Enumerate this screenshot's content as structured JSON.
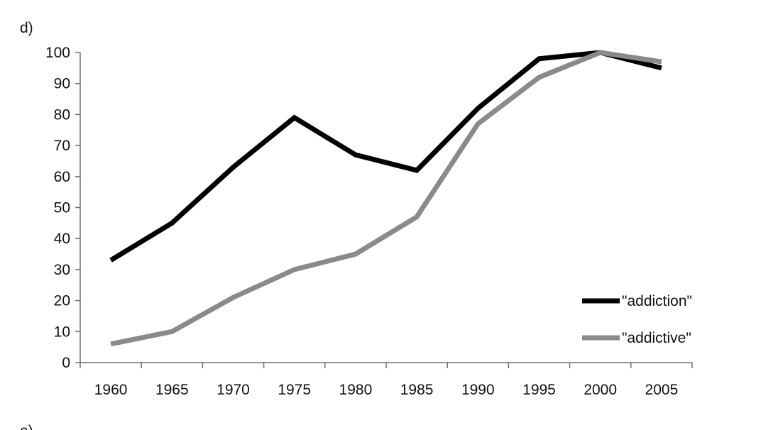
{
  "panel_label": "d)",
  "next_panel_label": "e)",
  "chart_data": {
    "type": "line",
    "title": "",
    "xlabel": "",
    "ylabel": "",
    "x": [
      1960,
      1965,
      1970,
      1975,
      1980,
      1985,
      1990,
      1995,
      2000,
      2005
    ],
    "x_tick_labels": [
      "1960",
      "1965",
      "1970",
      "1975",
      "1980",
      "1985",
      "1990",
      "1995",
      "2000",
      "2005"
    ],
    "y_tick_labels": [
      "0",
      "10",
      "20",
      "30",
      "40",
      "50",
      "60",
      "70",
      "80",
      "90",
      "100"
    ],
    "ylim": [
      0,
      100
    ],
    "grid": false,
    "legend_position": "bottom-right",
    "series": [
      {
        "name": "\"addiction\"",
        "color": "#000000",
        "values": [
          33,
          45,
          63,
          79,
          67,
          62,
          82,
          98,
          100,
          95
        ]
      },
      {
        "name": "\"addictive\"",
        "color": "#8a8a8a",
        "values": [
          6,
          10,
          21,
          30,
          35,
          47,
          77,
          92,
          100,
          97
        ]
      }
    ]
  }
}
